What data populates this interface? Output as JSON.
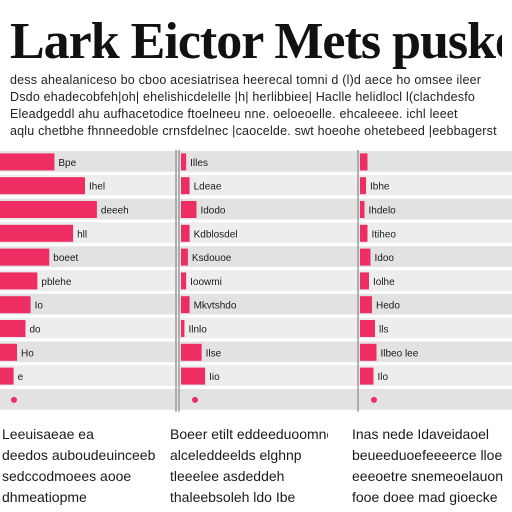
{
  "colors": {
    "bar": "#ee2d63",
    "band": "#e2e2e2",
    "band_alt": "#ededed",
    "axis": "#9a9a9a",
    "text": "#1a1a1a",
    "background": "#ffffff"
  },
  "header": {
    "title": "Lark Eictor Mets pusker",
    "intro_lines": [
      "dess ahealaniceso bo cboo acesiatrisea heerecal tomni d (l)d aece ho omsee ileer",
      "Dsdo ehadecobfeh|oh| ehelishicdelelle |h| herlibbiee| Haclle helidlocl l(clachdesfo",
      "Eleadgeddl ahu aufhacetodice  ftoelneeu nne. oeloeoelle. ehcaleeee. ichl leeet",
      "aqlu chetbhe fhnneedoble crnsfdelnec |caocelde. swt hoeohe ohetebeed |eebbagerst"
    ]
  },
  "footer": {
    "columns": [
      [
        "Leeuisaeae ea",
        "deedos auboudeuinceeb",
        "sedccodmoees aooe",
        "dhmeatiopme"
      ],
      [
        "Boeer etilt eddeeduoomne",
        "alceleddeelds elghnp",
        "tleeelee asdeddeh",
        "thaleebsoleh ldo Ibe"
      ],
      [
        "Inas nede Idaveidaoel",
        "beueeduoefeeeerce lloe",
        "eeeoetre snemeoelauon",
        "fooe doee mad gioecke"
      ]
    ]
  },
  "chart_data": [
    {
      "type": "bar",
      "orientation": "horizontal",
      "xlim": [
        0,
        100
      ],
      "categories": [
        "Bpe",
        "Ihel",
        "deeeh",
        "hll",
        "boeet",
        "pblehe",
        "Io",
        "do",
        "Ho",
        "e",
        ""
      ],
      "values": [
        32,
        50,
        57,
        43,
        29,
        22,
        18,
        15,
        10,
        8,
        0
      ],
      "markers": [
        false,
        false,
        false,
        false,
        false,
        false,
        false,
        false,
        false,
        false,
        true
      ]
    },
    {
      "type": "bar",
      "orientation": "horizontal",
      "xlim": [
        0,
        100
      ],
      "categories": [
        "Illes",
        "Ldeae",
        "Idodo",
        "Kdblosdel",
        "Ksdouoe",
        "Ioowmi",
        "Mkvtshdo",
        "Ilnlo",
        "Ilse",
        "Iio",
        ""
      ],
      "values": [
        3,
        5,
        9,
        5,
        4,
        3,
        5,
        2,
        12,
        14,
        0
      ],
      "markers": [
        false,
        false,
        false,
        false,
        false,
        false,
        false,
        false,
        false,
        false,
        true
      ]
    },
    {
      "type": "bar",
      "orientation": "horizontal",
      "xlim": [
        0,
        100
      ],
      "categories": [
        "",
        "Ibhe",
        "Ihdelo",
        "Itiheo",
        "Idoo",
        "Iolhe",
        "Hedo",
        "lls",
        "Ilbeo lee",
        "Ilo",
        ""
      ],
      "values": [
        5,
        4,
        3,
        5,
        7,
        6,
        8,
        10,
        11,
        9,
        0
      ],
      "markers": [
        false,
        false,
        false,
        false,
        false,
        false,
        false,
        false,
        false,
        false,
        true
      ]
    }
  ]
}
